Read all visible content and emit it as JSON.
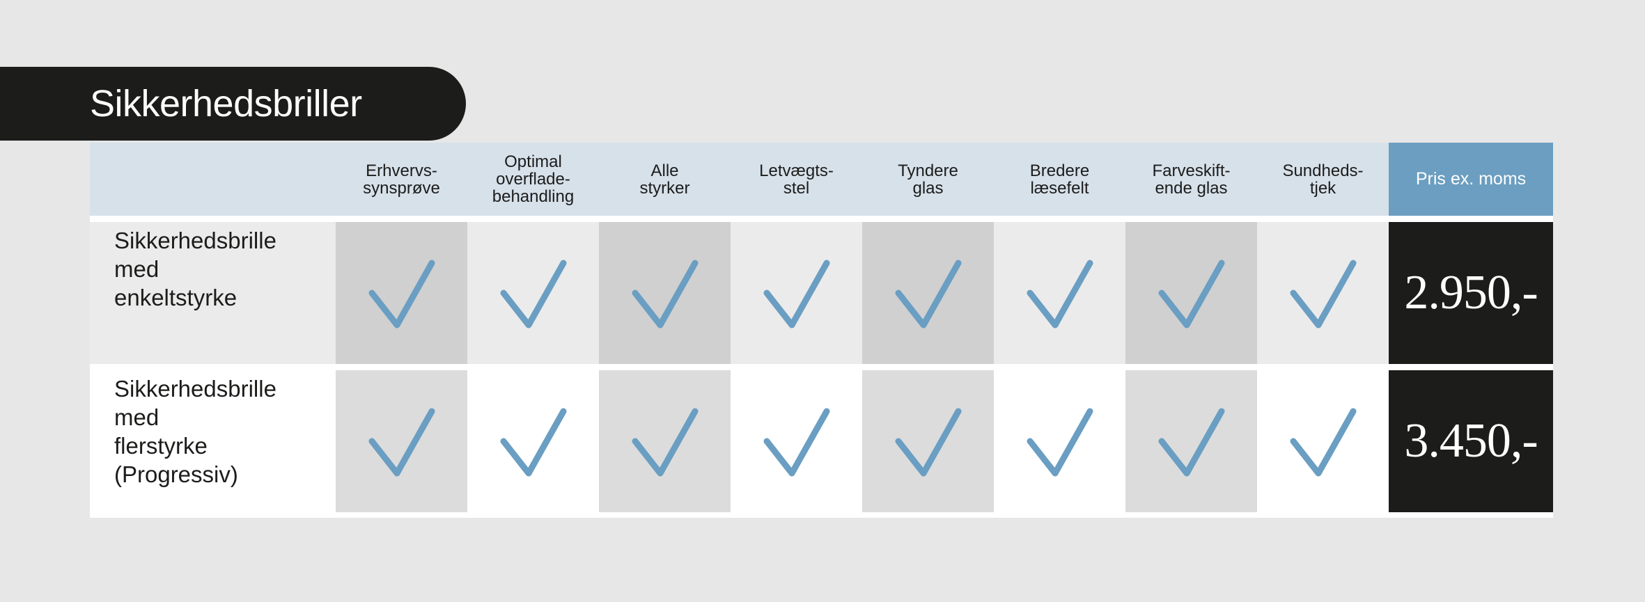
{
  "title": "Sikkerhedsbriller",
  "colors": {
    "header_bg": "#d7e1ea",
    "price_header_bg": "#6b9ec0",
    "dark": "#1c1c1b",
    "check": "#6a9ec2"
  },
  "columns": [
    "Erhvervs-\nsynsprøve",
    "Optimal\noverflade-\nbehandling",
    "Alle\nstyrker",
    "Letvægts-\nstel",
    "Tyndere\nglas",
    "Bredere\nlæsefelt",
    "Farveskift-\nende glas",
    "Sundheds-\ntjek"
  ],
  "price_header": "Pris ex. moms",
  "rows": [
    {
      "name_lines": [
        "Sikkerhedsbrille",
        "med",
        "enkeltstyrke"
      ],
      "subtitle": "",
      "checks": [
        true,
        true,
        true,
        true,
        true,
        true,
        true,
        true
      ],
      "price": "2.950,-"
    },
    {
      "name_lines": [
        "Sikkerhedsbrille",
        "med",
        "flerstyrke"
      ],
      "subtitle": "(Progressiv)",
      "checks": [
        true,
        true,
        true,
        true,
        true,
        true,
        true,
        true
      ],
      "price": "3.450,-"
    }
  ]
}
